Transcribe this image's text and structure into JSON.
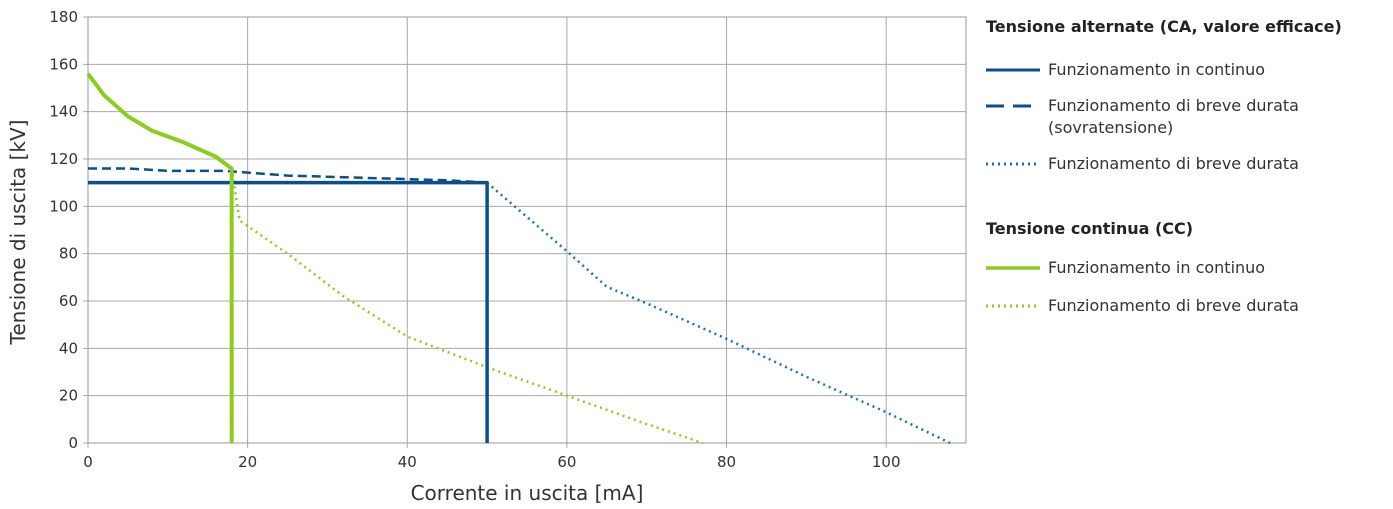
{
  "chart_data": {
    "type": "line",
    "xlabel": "Corrente in uscita [mA]",
    "ylabel": "Tensione di uscita [kV]",
    "xlim": [
      0,
      110
    ],
    "ylim": [
      0,
      180
    ],
    "x_ticks": [
      "0",
      "20",
      "40",
      "60",
      "80",
      "100"
    ],
    "y_ticks": [
      "0",
      "20",
      "40",
      "60",
      "80",
      "100",
      "120",
      "140",
      "160",
      "180"
    ],
    "grid": true,
    "legend_position": "right",
    "legend_groups": [
      {
        "title": "Tensione alternate (CA, valore efficace)",
        "entries": [
          0,
          1,
          2
        ]
      },
      {
        "title": "Tensione continua (CC)",
        "entries": [
          3,
          4
        ]
      }
    ],
    "series": [
      {
        "name": "Funzionamento in continuo",
        "group": "CA",
        "color": "#0a4e8f",
        "style": "solid",
        "points": [
          [
            0,
            110
          ],
          [
            50,
            110
          ],
          [
            50,
            0
          ]
        ]
      },
      {
        "name": "Funzionamento di breve durata (sovratensione)",
        "group": "CA",
        "color": "#0a4e8f",
        "style": "dashed",
        "points": [
          [
            0,
            116
          ],
          [
            5,
            116
          ],
          [
            10,
            115
          ],
          [
            17,
            115
          ],
          [
            25,
            113
          ],
          [
            35,
            112
          ],
          [
            45,
            111
          ],
          [
            50,
            110
          ]
        ]
      },
      {
        "name": "Funzionamento di breve durata",
        "group": "CA",
        "color": "#1e6fb8",
        "style": "dotted",
        "points": [
          [
            50,
            110
          ],
          [
            60,
            81
          ],
          [
            65,
            66
          ],
          [
            70,
            59
          ],
          [
            80,
            44
          ],
          [
            90,
            28
          ],
          [
            100,
            13
          ],
          [
            108,
            0
          ]
        ]
      },
      {
        "name": "Funzionamento in continuo",
        "group": "CC",
        "color": "#8ccc1e",
        "style": "solid",
        "points": [
          [
            0,
            156
          ],
          [
            2,
            147
          ],
          [
            5,
            138
          ],
          [
            8,
            132
          ],
          [
            12,
            127
          ],
          [
            16,
            121
          ],
          [
            18,
            116
          ],
          [
            18,
            0
          ]
        ]
      },
      {
        "name": "Funzionamento di breve durata",
        "group": "CC",
        "color": "#8ccc1e",
        "style": "dotted",
        "points": [
          [
            18,
            116
          ],
          [
            19,
            94
          ],
          [
            25,
            80
          ],
          [
            32,
            62
          ],
          [
            40,
            45
          ],
          [
            50,
            32
          ],
          [
            60,
            20
          ],
          [
            70,
            8
          ],
          [
            77,
            0
          ]
        ]
      }
    ]
  }
}
